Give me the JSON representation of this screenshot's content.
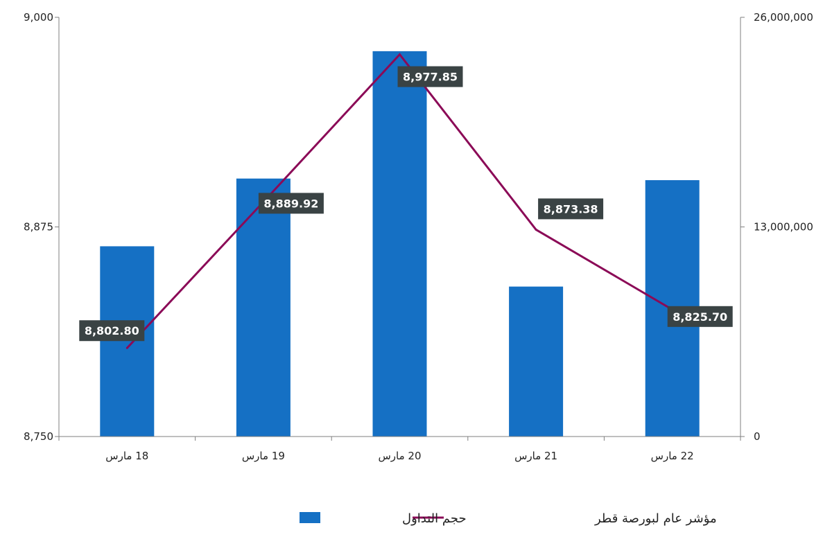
{
  "chart_data": {
    "type": "bar+line",
    "categories": [
      "18 مارس",
      "19 مارس",
      "20 مارس",
      "21 مارس",
      "22 مارس"
    ],
    "bar_series": {
      "name": "حجم التداول",
      "axis": "right",
      "color": "#1570C4",
      "values": [
        11800000,
        16000000,
        23900000,
        9300000,
        15900000
      ]
    },
    "line_series": {
      "name": "مؤشر عام لبورصة قطر",
      "axis": "left",
      "color": "#8B0A57",
      "values": [
        8802.8,
        8889.92,
        8977.85,
        8873.38,
        8825.7
      ],
      "data_labels": [
        "8,802.80",
        "8,889.92",
        "8,977.85",
        "8,873.38",
        "8,825.70"
      ]
    },
    "left_axis": {
      "ylim": [
        8750,
        9000
      ],
      "ticks": [
        8750,
        8875,
        9000
      ],
      "tick_labels": [
        "8,750",
        "8,875",
        "9,000"
      ]
    },
    "right_axis": {
      "ylim": [
        0,
        26000000
      ],
      "ticks": [
        0,
        13000000,
        26000000
      ],
      "tick_labels": [
        "0",
        "13,000,000",
        "26,000,000"
      ]
    },
    "grid": false,
    "legend_position": "bottom",
    "label_bg_color": "#3A4344"
  }
}
